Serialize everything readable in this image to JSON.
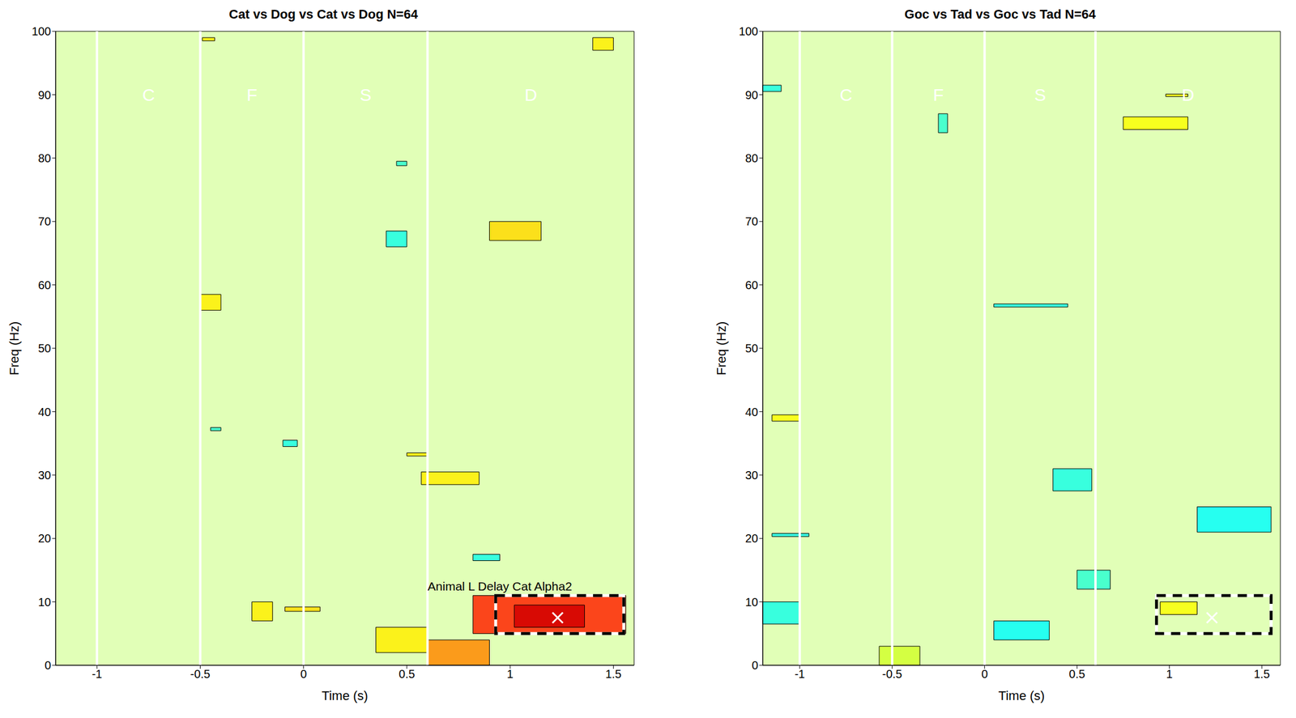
{
  "chart_data": [
    {
      "type": "heatmap",
      "title": "Cat vs Dog vs Cat vs Dog N=64",
      "xlabel": "Time (s)",
      "ylabel": "Freq (Hz)",
      "xlim": [
        -1.2,
        1.6
      ],
      "ylim": [
        0,
        100
      ],
      "xticks": [
        -1,
        -0.5,
        0,
        0.5,
        1,
        1.5
      ],
      "yticks": [
        0,
        10,
        20,
        30,
        40,
        50,
        60,
        70,
        80,
        90,
        100
      ],
      "event_lines": [
        -1,
        -0.5,
        0,
        0.6
      ],
      "phases": [
        {
          "label": "C",
          "t": -0.75,
          "f": 90
        },
        {
          "label": "F",
          "t": -0.25,
          "f": 90
        },
        {
          "label": "S",
          "t": 0.3,
          "f": 90
        },
        {
          "label": "D",
          "t": 1.1,
          "f": 90
        }
      ],
      "background": 55,
      "cells": [
        {
          "t": [
            0.82,
            1.56
          ],
          "f": [
            5,
            11
          ],
          "value": 84
        },
        {
          "t": [
            1.02,
            1.36
          ],
          "f": [
            6,
            9.5
          ],
          "value": 92
        },
        {
          "t": [
            0.6,
            0.9
          ],
          "f": [
            0,
            4
          ],
          "value": 74
        },
        {
          "t": [
            0.9,
            1.15
          ],
          "f": [
            67,
            70
          ],
          "value": 66
        },
        {
          "t": [
            0.57,
            0.85
          ],
          "f": [
            28.5,
            30.5
          ],
          "value": 64
        },
        {
          "t": [
            0.35,
            0.6
          ],
          "f": [
            2,
            6
          ],
          "value": 64
        },
        {
          "t": [
            -0.25,
            -0.15
          ],
          "f": [
            7,
            10
          ],
          "value": 64
        },
        {
          "t": [
            -0.09,
            0.08
          ],
          "f": [
            8.5,
            9.2
          ],
          "value": 66
        },
        {
          "t": [
            -0.5,
            -0.4
          ],
          "f": [
            56,
            58.5
          ],
          "value": 64
        },
        {
          "t": [
            1.4,
            1.5
          ],
          "f": [
            97,
            99
          ],
          "value": 64
        },
        {
          "t": [
            -0.49,
            -0.43
          ],
          "f": [
            98.5,
            99
          ],
          "value": 64
        },
        {
          "t": [
            0.5,
            0.6
          ],
          "f": [
            33,
            33.5
          ],
          "value": 64
        },
        {
          "t": [
            0.82,
            0.95
          ],
          "f": [
            16.5,
            17.5
          ],
          "value": 40
        },
        {
          "t": [
            0.4,
            0.5
          ],
          "f": [
            66,
            68.5
          ],
          "value": 40
        },
        {
          "t": [
            -0.1,
            -0.03
          ],
          "f": [
            34.5,
            35.5
          ],
          "value": 40
        },
        {
          "t": [
            -0.45,
            -0.4
          ],
          "f": [
            37,
            37.5
          ],
          "value": 42
        },
        {
          "t": [
            0.45,
            0.5
          ],
          "f": [
            78.8,
            79.5
          ],
          "value": 42
        }
      ],
      "box": {
        "t": [
          0.93,
          1.55
        ],
        "f": [
          5,
          11
        ]
      },
      "marker": {
        "t": 1.23,
        "f": 7.5
      },
      "annotation": {
        "text": "Animal L Delay Cat Alpha2",
        "t": 0.95,
        "f": 12.5
      }
    },
    {
      "type": "heatmap",
      "title": "Goc vs Tad vs Goc vs Tad N=64",
      "xlabel": "Time (s)",
      "ylabel": "Freq (Hz)",
      "xlim": [
        -1.2,
        1.6
      ],
      "ylim": [
        0,
        100
      ],
      "xticks": [
        -1,
        -0.5,
        0,
        0.5,
        1,
        1.5
      ],
      "yticks": [
        0,
        10,
        20,
        30,
        40,
        50,
        60,
        70,
        80,
        90,
        100
      ],
      "event_lines": [
        -1,
        -0.5,
        0,
        0.6
      ],
      "phases": [
        {
          "label": "C",
          "t": -0.75,
          "f": 90
        },
        {
          "label": "F",
          "t": -0.25,
          "f": 90
        },
        {
          "label": "S",
          "t": 0.3,
          "f": 90
        },
        {
          "label": "D",
          "t": 1.1,
          "f": 90
        }
      ],
      "background": 55,
      "cells": [
        {
          "t": [
            1.15,
            1.55
          ],
          "f": [
            21,
            25
          ],
          "value": 38
        },
        {
          "t": [
            0.05,
            0.35
          ],
          "f": [
            4,
            7
          ],
          "value": 38
        },
        {
          "t": [
            0.37,
            0.58
          ],
          "f": [
            27.5,
            31
          ],
          "value": 40
        },
        {
          "t": [
            0.5,
            0.68
          ],
          "f": [
            12,
            15
          ],
          "value": 42
        },
        {
          "t": [
            -1.2,
            -1.0
          ],
          "f": [
            6.5,
            10
          ],
          "value": 40
        },
        {
          "t": [
            0.05,
            0.45
          ],
          "f": [
            56.5,
            57
          ],
          "value": 40
        },
        {
          "t": [
            -0.25,
            -0.2
          ],
          "f": [
            84,
            87
          ],
          "value": 42
        },
        {
          "t": [
            -1.2,
            -1.1
          ],
          "f": [
            90.5,
            91.5
          ],
          "value": 40
        },
        {
          "t": [
            -1.15,
            -0.95
          ],
          "f": [
            20.3,
            20.8
          ],
          "value": 40
        },
        {
          "t": [
            0.75,
            1.1
          ],
          "f": [
            84.5,
            86.5
          ],
          "value": 62
        },
        {
          "t": [
            0.95,
            1.15
          ],
          "f": [
            8,
            10
          ],
          "value": 62
        },
        {
          "t": [
            -0.57,
            -0.35
          ],
          "f": [
            0,
            3
          ],
          "value": 58
        },
        {
          "t": [
            -1.15,
            -1.0
          ],
          "f": [
            38.5,
            39.5
          ],
          "value": 62
        },
        {
          "t": [
            0.98,
            1.1
          ],
          "f": [
            89.7,
            90.1
          ],
          "value": 62
        }
      ],
      "box": {
        "t": [
          0.93,
          1.55
        ],
        "f": [
          5,
          11
        ]
      },
      "marker": {
        "t": 1.23,
        "f": 7.5
      }
    }
  ],
  "colorbar": {
    "range": [
      0,
      100
    ]
  }
}
